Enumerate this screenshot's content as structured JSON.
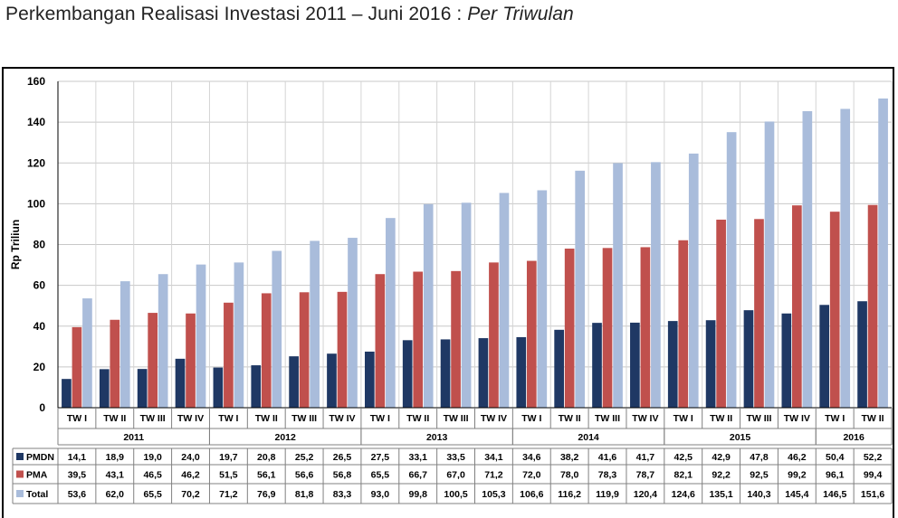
{
  "title": {
    "main": "Perkembangan Realisasi Investasi 2011 – Juni 2016 : ",
    "italic": "Per Triwulan"
  },
  "chart_data": {
    "type": "bar",
    "title": "Perkembangan Realisasi Investasi 2011 – Juni 2016 : Per Triwulan",
    "ylabel": "Rp Triliun",
    "xlabel": "",
    "ylim": [
      0,
      160
    ],
    "yticks": [
      0,
      20,
      40,
      60,
      80,
      100,
      120,
      140,
      160
    ],
    "grid": true,
    "legend_placement": "data-table-left",
    "categories": [
      "TW I",
      "TW II",
      "TW III",
      "TW IV",
      "TW I",
      "TW II",
      "TW III",
      "TW IV",
      "TW I",
      "TW II",
      "TW III",
      "TW IV",
      "TW I",
      "TW II",
      "TW III",
      "TW IV",
      "TW I",
      "TW II",
      "TW III",
      "TW IV",
      "TW I",
      "TW II"
    ],
    "groups": [
      {
        "label": "2011",
        "count": 4
      },
      {
        "label": "2012",
        "count": 4
      },
      {
        "label": "2013",
        "count": 4
      },
      {
        "label": "2014",
        "count": 4
      },
      {
        "label": "2015",
        "count": 4
      },
      {
        "label": "2016",
        "count": 2
      }
    ],
    "series": [
      {
        "name": "PMDN",
        "color": "#1f3864",
        "values": [
          14.1,
          18.9,
          19.0,
          24.0,
          19.7,
          20.8,
          25.2,
          26.5,
          27.5,
          33.1,
          33.5,
          34.1,
          34.6,
          38.2,
          41.6,
          41.7,
          42.5,
          42.9,
          47.8,
          46.2,
          50.4,
          52.2
        ],
        "labels": [
          "14,1",
          "18,9",
          "19,0",
          "24,0",
          "19,7",
          "20,8",
          "25,2",
          "26,5",
          "27,5",
          "33,1",
          "33,5",
          "34,1",
          "34,6",
          "38,2",
          "41,6",
          "41,7",
          "42,5",
          "42,9",
          "47,8",
          "46,2",
          "50,4",
          "52,2"
        ]
      },
      {
        "name": "PMA",
        "color": "#c0504d",
        "values": [
          39.5,
          43.1,
          46.5,
          46.2,
          51.5,
          56.1,
          56.6,
          56.8,
          65.5,
          66.7,
          67.0,
          71.2,
          72.0,
          78.0,
          78.3,
          78.7,
          82.1,
          92.2,
          92.5,
          99.2,
          96.1,
          99.4
        ],
        "labels": [
          "39,5",
          "43,1",
          "46,5",
          "46,2",
          "51,5",
          "56,1",
          "56,6",
          "56,8",
          "65,5",
          "66,7",
          "67,0",
          "71,2",
          "72,0",
          "78,0",
          "78,3",
          "78,7",
          "82,1",
          "92,2",
          "92,5",
          "99,2",
          "96,1",
          "99,4"
        ]
      },
      {
        "name": "Total",
        "color": "#a9bcdb",
        "values": [
          53.6,
          62.0,
          65.5,
          70.2,
          71.2,
          76.9,
          81.8,
          83.3,
          93.0,
          99.8,
          100.5,
          105.3,
          106.6,
          116.2,
          119.9,
          120.4,
          124.6,
          135.1,
          140.3,
          145.4,
          146.5,
          151.6
        ],
        "labels": [
          "53,6",
          "62,0",
          "65,5",
          "70,2",
          "71,2",
          "76,9",
          "81,8",
          "83,3",
          "93,0",
          "99,8",
          "100,5",
          "105,3",
          "106,6",
          "116,2",
          "119,9",
          "120,4",
          "124,6",
          "135,1",
          "140,3",
          "145,4",
          "146,5",
          "151,6"
        ]
      }
    ]
  }
}
